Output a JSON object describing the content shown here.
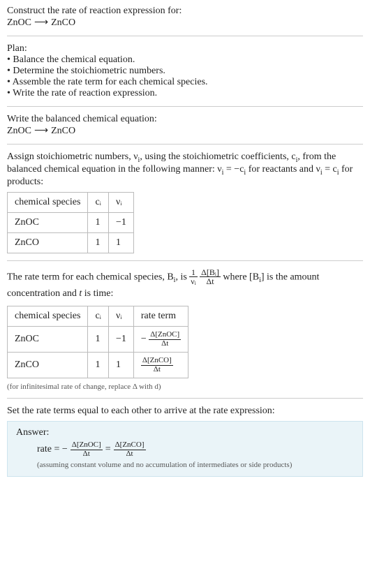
{
  "header": {
    "title": "Construct the rate of reaction expression for:",
    "equation_left": "ZnOC",
    "arrow": "⟶",
    "equation_right": "ZnCO"
  },
  "plan": {
    "label": "Plan:",
    "items": [
      "Balance the chemical equation.",
      "Determine the stoichiometric numbers.",
      "Assemble the rate term for each chemical species.",
      "Write the rate of reaction expression."
    ]
  },
  "balanced": {
    "label": "Write the balanced chemical equation:",
    "equation_left": "ZnOC",
    "arrow": "⟶",
    "equation_right": "ZnCO"
  },
  "stoich": {
    "intro_a": "Assign stoichiometric numbers, ν",
    "intro_b": ", using the stoichiometric coefficients, c",
    "intro_c": ", from the balanced chemical equation in the following manner: ν",
    "intro_d": " = −c",
    "intro_e": " for reactants and ν",
    "intro_f": " = c",
    "intro_g": " for products:",
    "sub_i": "i",
    "table": {
      "h1": "chemical species",
      "h2": "cᵢ",
      "h3": "νᵢ",
      "rows": [
        {
          "species": "ZnOC",
          "c": "1",
          "nu": "−1"
        },
        {
          "species": "ZnCO",
          "c": "1",
          "nu": "1"
        }
      ]
    }
  },
  "rateterm": {
    "intro_a": "The rate term for each chemical species, B",
    "intro_b": ", is ",
    "frac1_num": "1",
    "frac1_den": "νᵢ",
    "frac2_num": "Δ[Bᵢ]",
    "frac2_den": "Δt",
    "intro_c": " where [B",
    "intro_d": "] is the amount concentration and ",
    "intro_e": " is time:",
    "t_var": "t",
    "sub_i": "i",
    "table": {
      "h1": "chemical species",
      "h2": "cᵢ",
      "h3": "νᵢ",
      "h4": "rate term",
      "rows": [
        {
          "species": "ZnOC",
          "c": "1",
          "nu": "−1",
          "rate_sign": "−",
          "rate_num": "Δ[ZnOC]",
          "rate_den": "Δt"
        },
        {
          "species": "ZnCO",
          "c": "1",
          "nu": "1",
          "rate_sign": "",
          "rate_num": "Δ[ZnCO]",
          "rate_den": "Δt"
        }
      ]
    },
    "note": "(for infinitesimal rate of change, replace Δ with d)"
  },
  "final": {
    "intro": "Set the rate terms equal to each other to arrive at the rate expression:",
    "answer_label": "Answer:",
    "rate_label": "rate = −",
    "frac1_num": "Δ[ZnOC]",
    "frac1_den": "Δt",
    "eq": " = ",
    "frac2_num": "Δ[ZnCO]",
    "frac2_den": "Δt",
    "assume": "(assuming constant volume and no accumulation of intermediates or side products)"
  },
  "colors": {
    "text": "#222222",
    "rule": "#cccccc",
    "table_border": "#bbbbbb",
    "answer_bg": "#eaf4f8",
    "answer_border": "#cde4ee",
    "note": "#555555"
  },
  "typography": {
    "body_fontsize_pt": 11,
    "note_fontsize_pt": 8,
    "font_family": "Georgia serif"
  }
}
